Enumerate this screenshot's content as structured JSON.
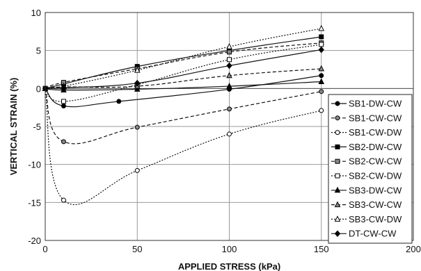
{
  "chart_data": {
    "type": "line",
    "title": "",
    "xlabel": "APPLIED STRESS (kPa)",
    "ylabel": "VERTICAL STRAIN (%)",
    "xlim": [
      0,
      200
    ],
    "ylim": [
      -20,
      10
    ],
    "xticks": [
      "0",
      "50",
      "100",
      "150",
      "200"
    ],
    "yticks": [
      "10",
      "5",
      "0",
      "-5",
      "-10",
      "-15",
      "-20"
    ],
    "grid": true,
    "legend_position": "right",
    "series": [
      {
        "name": "SB1-DW-CW",
        "marker": "circle",
        "marker_fill": "#000000",
        "dash": "solid",
        "points": [
          [
            0,
            0
          ],
          [
            10,
            -2.3
          ],
          [
            40,
            -1.7
          ],
          [
            100,
            -0.1
          ],
          [
            150,
            1.7
          ]
        ]
      },
      {
        "name": "SB1-CW-CW",
        "marker": "circle",
        "marker_fill": "#888888",
        "dash": "dashed",
        "points": [
          [
            0,
            0
          ],
          [
            10,
            -7.0
          ],
          [
            50,
            -5.1
          ],
          [
            100,
            -2.7
          ],
          [
            150,
            -0.4
          ]
        ]
      },
      {
        "name": "SB1-CW-DW",
        "marker": "circle",
        "marker_fill": "#ffffff",
        "dash": "dotted",
        "points": [
          [
            0,
            0
          ],
          [
            10,
            -14.7
          ],
          [
            50,
            -10.8
          ],
          [
            100,
            -6.0
          ],
          [
            150,
            -2.9
          ]
        ]
      },
      {
        "name": "SB2-DW-CW",
        "marker": "square",
        "marker_fill": "#000000",
        "dash": "solid",
        "points": [
          [
            0,
            0
          ],
          [
            10,
            0.6
          ],
          [
            50,
            2.9
          ],
          [
            100,
            5.0
          ],
          [
            150,
            6.8
          ]
        ]
      },
      {
        "name": "SB2-CW-CW",
        "marker": "square",
        "marker_fill": "#888888",
        "dash": "dashed",
        "points": [
          [
            0,
            0
          ],
          [
            10,
            0.8
          ],
          [
            50,
            2.6
          ],
          [
            100,
            4.8
          ],
          [
            150,
            6.0
          ]
        ]
      },
      {
        "name": "SB2-CW-DW",
        "marker": "square",
        "marker_fill": "#ffffff",
        "dash": "dotted",
        "points": [
          [
            0,
            0
          ],
          [
            10,
            -1.7
          ],
          [
            50,
            0.5
          ],
          [
            100,
            3.8
          ],
          [
            150,
            5.8
          ]
        ]
      },
      {
        "name": "SB3-DW-CW",
        "marker": "triangle",
        "marker_fill": "#000000",
        "dash": "solid",
        "points": [
          [
            0,
            0
          ],
          [
            10,
            -0.2
          ],
          [
            50,
            -0.1
          ],
          [
            100,
            0.3
          ],
          [
            150,
            0.9
          ]
        ]
      },
      {
        "name": "SB3-CW-CW",
        "marker": "triangle",
        "marker_fill": "#888888",
        "dash": "dashed",
        "points": [
          [
            0,
            0
          ],
          [
            10,
            0.2
          ],
          [
            50,
            0.3
          ],
          [
            100,
            1.7
          ],
          [
            150,
            2.6
          ]
        ]
      },
      {
        "name": "SB3-CW-DW",
        "marker": "triangle",
        "marker_fill": "#ffffff",
        "dash": "dotted",
        "points": [
          [
            0,
            0
          ],
          [
            10,
            0.3
          ],
          [
            50,
            2.4
          ],
          [
            100,
            5.5
          ],
          [
            150,
            7.9
          ]
        ]
      },
      {
        "name": "DT-CW-CW",
        "marker": "diamond",
        "marker_fill": "#000000",
        "dash": "solid",
        "points": [
          [
            0,
            0
          ],
          [
            10,
            0.1
          ],
          [
            50,
            0.7
          ],
          [
            100,
            3.0
          ],
          [
            150,
            5.1
          ]
        ]
      }
    ]
  }
}
